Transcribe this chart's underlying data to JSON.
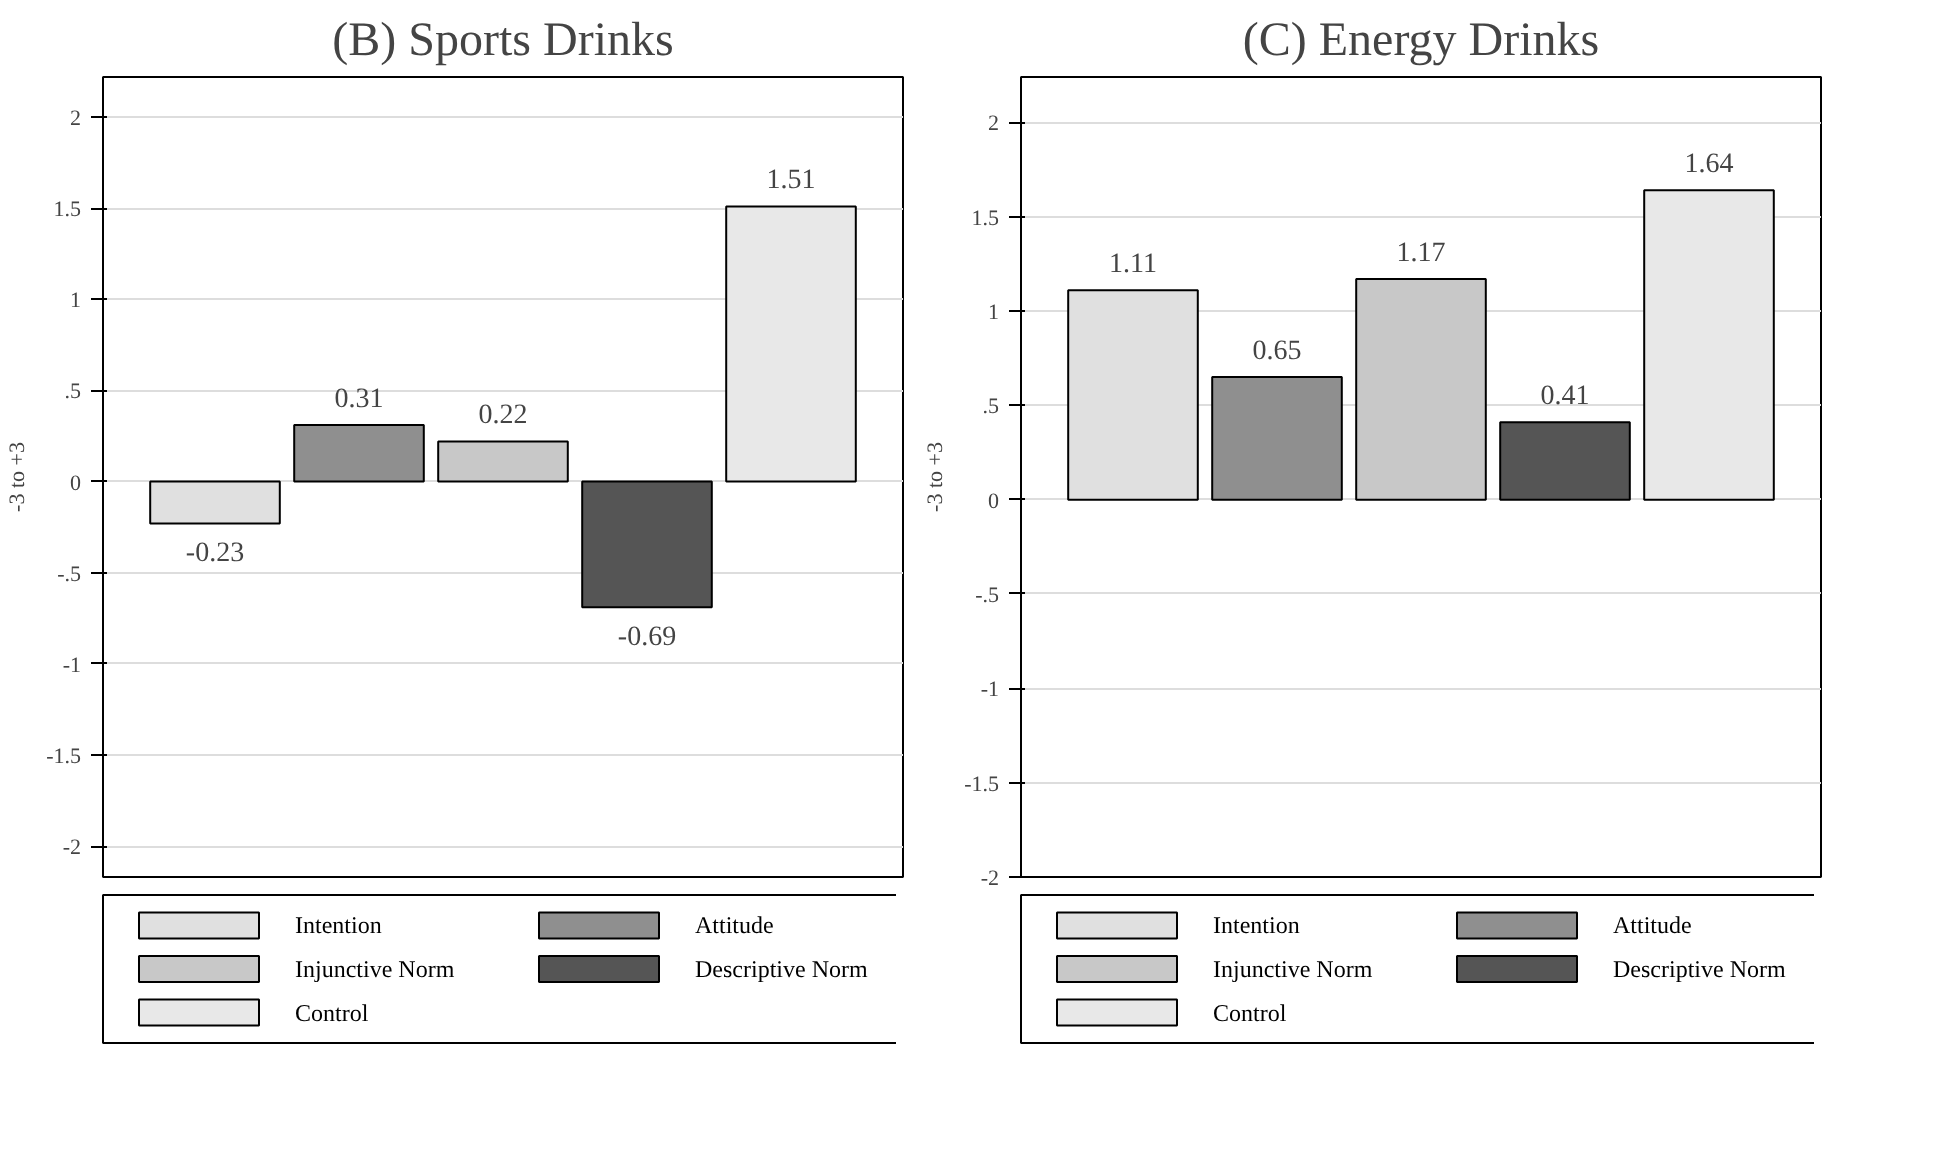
{
  "chart_data": [
    {
      "type": "bar",
      "title": "(B) Sports Drinks",
      "ylabel": "-3 to +3",
      "categories": [
        null
      ],
      "ylim": [
        -2.17,
        2.22
      ],
      "yticks": [
        {
          "value": -2,
          "label": "-2"
        },
        {
          "value": -1.5,
          "label": "-1.5"
        },
        {
          "value": -1,
          "label": "-1"
        },
        {
          "value": -0.5,
          "label": "-.5"
        },
        0,
        {
          "value": 0.5,
          "label": ".5"
        },
        1,
        1.5,
        2
      ],
      "series": [
        {
          "name": "Intention",
          "color": "#e0e0e0",
          "values": [
            -0.23
          ]
        },
        {
          "name": "Attitude",
          "color": "#8f8f8f",
          "values": [
            0.31
          ]
        },
        {
          "name": "Injunctive Norm",
          "color": "#c8c8c8",
          "values": [
            0.22
          ]
        },
        {
          "name": "Descriptive Norm",
          "color": "#555555",
          "values": [
            -0.69
          ]
        },
        {
          "name": "Control",
          "color": "#e8e8e8",
          "values": [
            1.51
          ]
        }
      ],
      "data_labels": true,
      "grid": "y",
      "legend": "bottom"
    },
    {
      "type": "bar",
      "title": "(C) Energy Drinks",
      "ylabel": "-3 to +3",
      "categories": [
        null
      ],
      "ylim": [
        -2,
        2.24
      ],
      "yticks": [
        {
          "value": -2,
          "label": "-2"
        },
        {
          "value": -1.5,
          "label": "-1.5"
        },
        {
          "value": -1,
          "label": "-1"
        },
        {
          "value": -0.5,
          "label": "-.5"
        },
        0,
        {
          "value": 0.5,
          "label": ".5"
        },
        1,
        1.5,
        2
      ],
      "series": [
        {
          "name": "Intention",
          "color": "#e0e0e0",
          "values": [
            1.11
          ]
        },
        {
          "name": "Attitude",
          "color": "#8f8f8f",
          "values": [
            0.65
          ]
        },
        {
          "name": "Injunctive Norm",
          "color": "#c8c8c8",
          "values": [
            1.17
          ]
        },
        {
          "name": "Descriptive Norm",
          "color": "#555555",
          "values": [
            0.41
          ]
        },
        {
          "name": "Control",
          "color": "#e8e8e8",
          "values": [
            1.64
          ]
        }
      ],
      "data_labels": true,
      "grid": "y",
      "legend": "bottom"
    }
  ]
}
